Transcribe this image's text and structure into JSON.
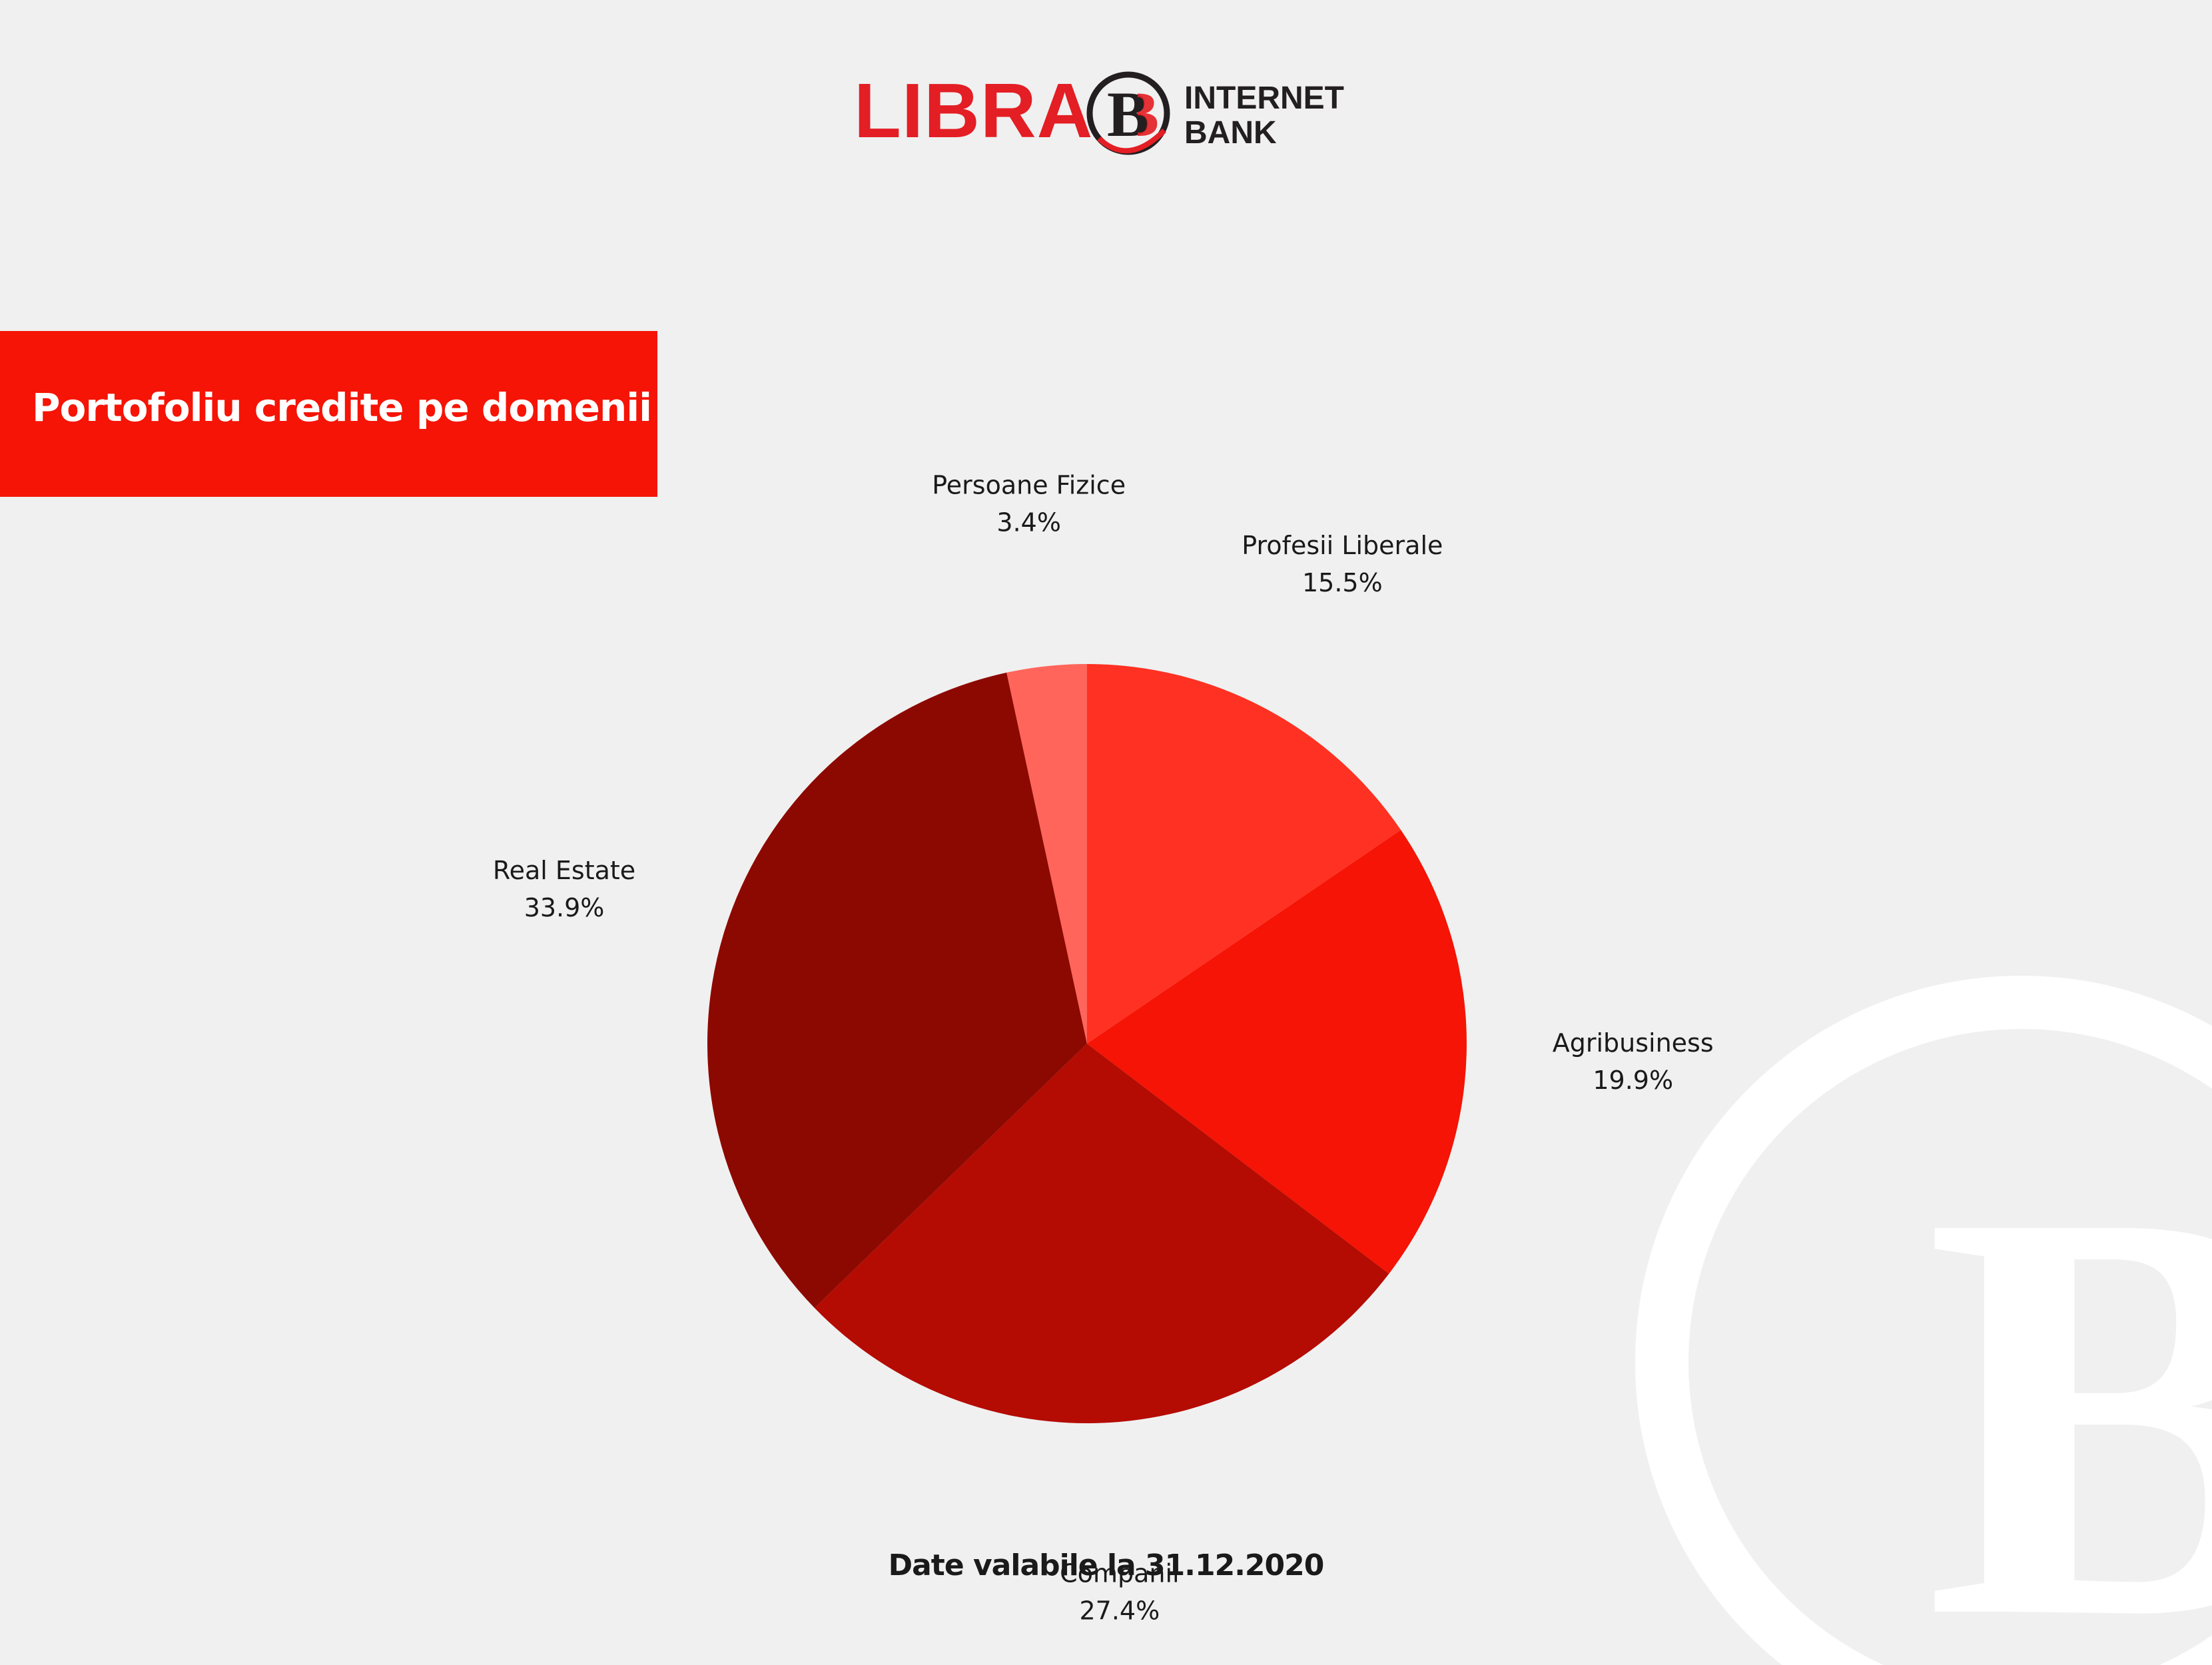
{
  "logo": {
    "brand": "LIBRA",
    "emblem_letter": "B",
    "line1": "INTERNET",
    "line2": "BANK"
  },
  "banner": {
    "title": "Portofoliu credite pe domenii"
  },
  "footnote": "Date valabile la 31.12.2020",
  "colors": {
    "background": "#f0f0f0",
    "brand_red": "#e31e24",
    "banner_red": "#f51405"
  },
  "chart_data": {
    "type": "pie",
    "title": "",
    "start_angle_deg": 0,
    "direction": "clockwise",
    "slices": [
      {
        "label": "Profesii Liberale",
        "value": 15.5,
        "value_label": "15.5%",
        "color": "#ff3122"
      },
      {
        "label": "Agribusiness",
        "value": 19.9,
        "value_label": "19.9%",
        "color": "#f51405"
      },
      {
        "label": "Companii",
        "value": 27.4,
        "value_label": "27.4%",
        "color": "#b40b02"
      },
      {
        "label": "Real Estate",
        "value": 33.9,
        "value_label": "33.9%",
        "color": "#8c0901"
      },
      {
        "label": "Persoane Fizice",
        "value": 3.4,
        "value_label": "3.4%",
        "color": "#ff655a"
      }
    ]
  }
}
